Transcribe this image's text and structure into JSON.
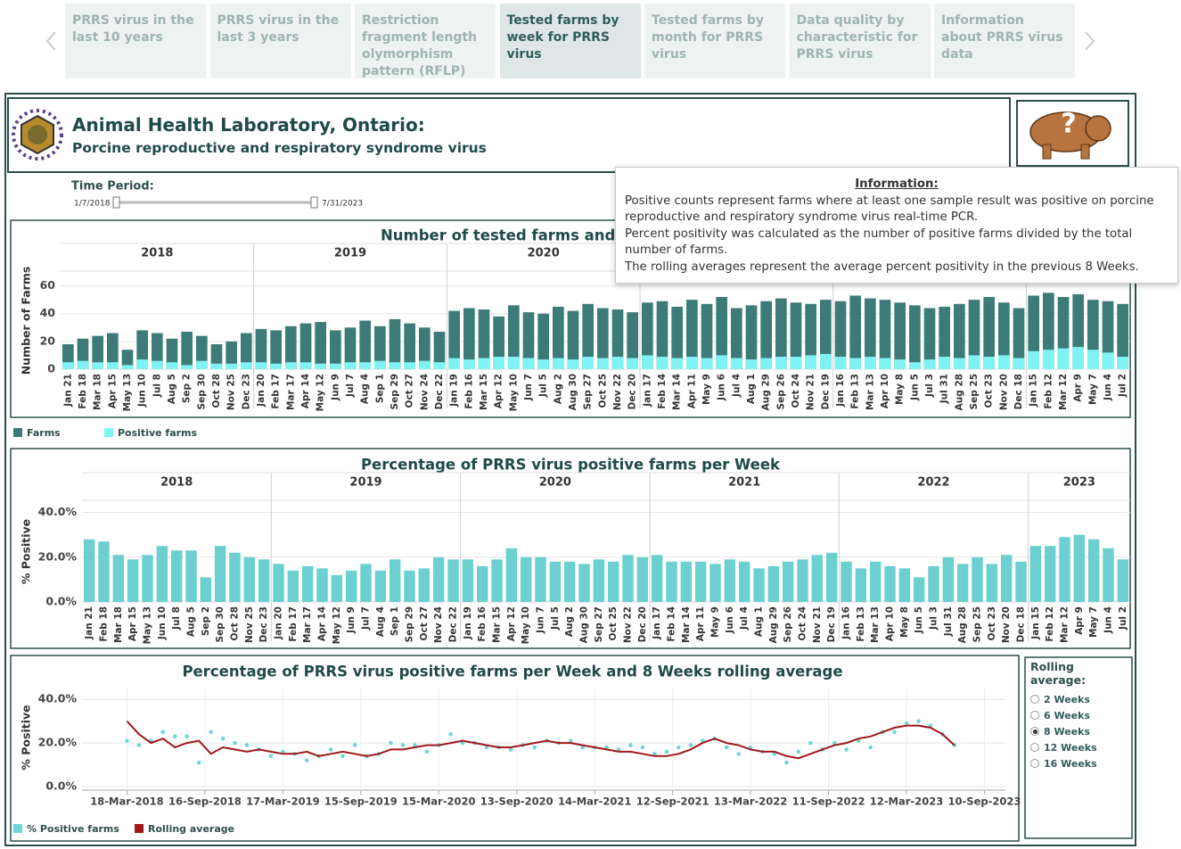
{
  "nav": {
    "tabs": [
      "PRRS virus in the last 10 years",
      "PRRS virus in the last 3 years",
      "Restriction fragment length olymorphism pattern (RFLP)",
      "Tested farms by week for PRRS virus",
      "Tested farms by month for PRRS virus",
      "Data quality by characteristic for PRRS virus",
      "Information about PRRS virus data"
    ],
    "active": 3
  },
  "header": {
    "title": "Animal Health Laboratory, Ontario:",
    "subtitle": "Porcine reproductive and respiratory syndrome virus",
    "help_icon": "?"
  },
  "time_period": {
    "label": "Time Period:",
    "start": "1/7/2018",
    "end": "7/31/2023"
  },
  "info": {
    "title": "Information:",
    "lines": [
      "Positive counts represent farms where at least one sample result was positive on porcine reproductive and respiratory syndrome virus real-time PCR.",
      "Percent positivity was calculated as the number of positive farms divided by the total number of farms.",
      "The rolling averages represent the average percent positivity in the previous 8 Weeks."
    ]
  },
  "rolling_control": {
    "title": "Rolling average:",
    "options": [
      "2 Weeks",
      "6 Weeks",
      "8 Weeks",
      "12 Weeks",
      "16 Weeks"
    ],
    "selected": 2
  },
  "chart_data": [
    {
      "type": "bar",
      "title": "Number of tested farms and posi",
      "y_label": "Number of Farms",
      "years": [
        "2018",
        "2019",
        "2020"
      ],
      "categories": [
        "Jan 21",
        "Feb 18",
        "Mar 18",
        "Apr 15",
        "May 13",
        "Jun 10",
        "Jul 8",
        "Aug 5",
        "Sep 2",
        "Sep 30",
        "Oct 28",
        "Nov 25",
        "Dec 23",
        "Jan 20",
        "Feb 17",
        "Mar 17",
        "Apr 14",
        "May 12",
        "Jun 9",
        "Jul 7",
        "Aug 4",
        "Sep 1",
        "Sep 29",
        "Oct 27",
        "Nov 24",
        "Dec 22",
        "Jan 19",
        "Feb 16",
        "Mar 15",
        "Apr 12",
        "May 10",
        "Jun 7",
        "Jul 5",
        "Aug 2",
        "Aug 30",
        "Sep 27",
        "Oct 25",
        "Nov 22",
        "Dec 20",
        "Jan 17",
        "Feb 14",
        "Mar 14",
        "Apr 11",
        "May 9",
        "Jun 6",
        "Jul 4",
        "Aug 1",
        "Aug 29",
        "Sep 26",
        "Oct 24",
        "Nov 21",
        "Dec 19",
        "Jan 16",
        "Feb 13",
        "Mar 13",
        "Apr 10",
        "May 8",
        "Jun 5",
        "Jul 3",
        "Jul 31",
        "Aug 28",
        "Sep 25",
        "Oct 23",
        "Nov 20",
        "Dec 18",
        "Jan 15",
        "Feb 12",
        "Mar 12",
        "Apr 9",
        "May 7",
        "Jun 4",
        "Jul 2"
      ],
      "series": [
        {
          "name": "Farms",
          "color": "#3d7b78",
          "values": [
            18,
            22,
            24,
            26,
            14,
            28,
            26,
            22,
            27,
            24,
            18,
            20,
            26,
            29,
            28,
            31,
            33,
            34,
            28,
            30,
            35,
            31,
            36,
            33,
            30,
            27,
            42,
            44,
            43,
            38,
            46,
            41,
            40,
            45,
            42,
            47,
            44,
            43,
            41,
            48,
            49,
            45,
            50,
            47,
            52,
            44,
            46,
            49,
            51,
            48,
            47,
            50,
            49,
            53,
            51,
            50,
            48,
            46,
            44,
            45,
            47,
            50,
            52,
            48,
            44,
            53,
            55,
            52,
            54,
            50,
            49,
            47
          ]
        },
        {
          "name": "Positive farms",
          "color": "#7ff3f3",
          "values": [
            5,
            6,
            5,
            5,
            3,
            7,
            6,
            5,
            3,
            6,
            4,
            4,
            5,
            5,
            4,
            5,
            5,
            4,
            4,
            5,
            5,
            6,
            5,
            5,
            6,
            5,
            8,
            7,
            8,
            9,
            9,
            8,
            7,
            8,
            7,
            9,
            8,
            9,
            8,
            10,
            9,
            8,
            9,
            8,
            10,
            8,
            7,
            8,
            9,
            9,
            10,
            11,
            9,
            8,
            9,
            8,
            7,
            5,
            7,
            9,
            8,
            10,
            9,
            10,
            8,
            13,
            14,
            15,
            16,
            14,
            12,
            9
          ]
        }
      ],
      "ylim": [
        0,
        70
      ],
      "yticks": [
        0,
        20,
        40,
        60
      ],
      "grid": true
    },
    {
      "type": "bar",
      "title": "Percentage of PRRS virus positive farms per Week",
      "y_label": "% Positive",
      "years": [
        "2018",
        "2019",
        "2020",
        "2021",
        "2022",
        "2023"
      ],
      "categories": [
        "Jan 21",
        "Feb 18",
        "Mar 18",
        "Apr 15",
        "May 13",
        "Jun 10",
        "Jul 8",
        "Aug 5",
        "Sep 2",
        "Sep 30",
        "Oct 28",
        "Nov 25",
        "Dec 23",
        "Jan 20",
        "Feb 17",
        "Mar 17",
        "Apr 14",
        "May 12",
        "Jun 9",
        "Jul 7",
        "Aug 4",
        "Sep 1",
        "Sep 29",
        "Oct 27",
        "Nov 24",
        "Dec 22",
        "Jan 19",
        "Feb 16",
        "Mar 15",
        "Apr 12",
        "May 10",
        "Jun 7",
        "Jul 5",
        "Aug 2",
        "Aug 30",
        "Sep 27",
        "Oct 25",
        "Nov 22",
        "Dec 20",
        "Jan 17",
        "Feb 14",
        "Mar 14",
        "Apr 11",
        "May 9",
        "Jun 6",
        "Jul 4",
        "Aug 1",
        "Aug 29",
        "Sep 26",
        "Oct 24",
        "Nov 21",
        "Dec 19",
        "Jan 16",
        "Feb 13",
        "Mar 13",
        "Apr 10",
        "May 8",
        "Jun 5",
        "Jul 3",
        "Jul 31",
        "Aug 28",
        "Sep 25",
        "Oct 23",
        "Nov 20",
        "Dec 18",
        "Jan 15",
        "Feb 12",
        "Mar 12",
        "Apr 9",
        "May 7",
        "Jun 4",
        "Jul 2"
      ],
      "series": [
        {
          "name": "% Positive",
          "color": "#6ccfd0",
          "values": [
            28,
            27,
            21,
            19,
            21,
            25,
            23,
            23,
            11,
            25,
            22,
            20,
            19,
            17,
            14,
            16,
            15,
            12,
            14,
            17,
            14,
            19,
            14,
            15,
            20,
            19,
            19,
            16,
            19,
            24,
            20,
            20,
            18,
            18,
            17,
            19,
            18,
            21,
            20,
            21,
            18,
            18,
            18,
            17,
            19,
            18,
            15,
            16,
            18,
            19,
            21,
            22,
            18,
            15,
            18,
            16,
            15,
            11,
            16,
            20,
            17,
            20,
            17,
            21,
            18,
            25,
            25,
            29,
            30,
            28,
            24,
            19
          ]
        }
      ],
      "ylim": [
        0,
        45
      ],
      "yticks": [
        {
          "value": 0,
          "label": "0.0%"
        },
        {
          "value": 20,
          "label": "20.0%"
        },
        {
          "value": 40,
          "label": "40.0%"
        }
      ],
      "grid": true
    },
    {
      "type": "scatter",
      "title": "Percentage of PRRS virus positive farms per Week and 8 Weeks rolling average",
      "y_label": "% Positive",
      "x": [
        "2018-03-18",
        "2018-04-15",
        "2018-05-13",
        "2018-06-10",
        "2018-07-08",
        "2018-08-05",
        "2018-09-02",
        "2018-09-30",
        "2018-10-28",
        "2018-11-25",
        "2018-12-23",
        "2019-01-20",
        "2019-02-17",
        "2019-03-17",
        "2019-04-14",
        "2019-05-12",
        "2019-06-09",
        "2019-07-07",
        "2019-08-04",
        "2019-09-01",
        "2019-09-29",
        "2019-10-27",
        "2019-11-24",
        "2019-12-22",
        "2020-01-19",
        "2020-02-16",
        "2020-03-15",
        "2020-04-12",
        "2020-05-10",
        "2020-06-07",
        "2020-07-05",
        "2020-08-02",
        "2020-08-30",
        "2020-09-27",
        "2020-10-25",
        "2020-11-22",
        "2020-12-20",
        "2021-01-17",
        "2021-02-14",
        "2021-03-14",
        "2021-04-11",
        "2021-05-09",
        "2021-06-06",
        "2021-07-04",
        "2021-08-01",
        "2021-08-29",
        "2021-09-26",
        "2021-10-24",
        "2021-11-21",
        "2021-12-19",
        "2022-01-16",
        "2022-02-13",
        "2022-03-13",
        "2022-04-10",
        "2022-05-08",
        "2022-06-05",
        "2022-07-03",
        "2022-07-31",
        "2022-08-28",
        "2022-09-25",
        "2022-10-23",
        "2022-11-20",
        "2022-12-18",
        "2023-01-15",
        "2023-02-12",
        "2023-03-12",
        "2023-04-09",
        "2023-05-07",
        "2023-06-04",
        "2023-07-02"
      ],
      "series": [
        {
          "name": "% Positive farms",
          "type": "scatter",
          "color": "#6fd6d8",
          "values": [
            21,
            19,
            21,
            25,
            23,
            23,
            11,
            25,
            22,
            20,
            19,
            17,
            14,
            16,
            15,
            12,
            14,
            17,
            14,
            19,
            14,
            15,
            20,
            19,
            19,
            16,
            19,
            24,
            20,
            20,
            18,
            18,
            17,
            19,
            18,
            21,
            20,
            21,
            18,
            18,
            18,
            17,
            19,
            18,
            15,
            16,
            18,
            19,
            21,
            22,
            18,
            15,
            18,
            16,
            15,
            11,
            16,
            20,
            17,
            20,
            17,
            21,
            18,
            25,
            25,
            29,
            30,
            28,
            24,
            19
          ]
        },
        {
          "name": "Rolling average",
          "type": "line",
          "color": "#a01818",
          "values": [
            30,
            24,
            20,
            22,
            18,
            20,
            21,
            15,
            18,
            17,
            16,
            17,
            16,
            15,
            15,
            16,
            14,
            15,
            16,
            15,
            14,
            15,
            17,
            17,
            18,
            19,
            19,
            20,
            21,
            20,
            19,
            18,
            18,
            19,
            20,
            21,
            20,
            20,
            19,
            18,
            17,
            16,
            16,
            15,
            14,
            14,
            15,
            17,
            20,
            22,
            20,
            19,
            17,
            16,
            16,
            14,
            13,
            15,
            17,
            19,
            20,
            22,
            23,
            25,
            27,
            28,
            28,
            27,
            24,
            19
          ]
        }
      ],
      "xlim": [
        "2017-12-03",
        "2023-10-29"
      ],
      "xticks": [
        {
          "value": "2018-03-18",
          "label": "18-Mar-2018"
        },
        {
          "value": "2018-09-16",
          "label": "16-Sep-2018"
        },
        {
          "value": "2019-03-17",
          "label": "17-Mar-2019"
        },
        {
          "value": "2019-09-15",
          "label": "15-Sep-2019"
        },
        {
          "value": "2020-03-15",
          "label": "15-Mar-2020"
        },
        {
          "value": "2020-09-13",
          "label": "13-Sep-2020"
        },
        {
          "value": "2021-03-14",
          "label": "14-Mar-2021"
        },
        {
          "value": "2021-09-12",
          "label": "12-Sep-2021"
        },
        {
          "value": "2022-03-13",
          "label": "13-Mar-2022"
        },
        {
          "value": "2022-09-11",
          "label": "11-Sep-2022"
        },
        {
          "value": "2023-03-12",
          "label": "12-Mar-2023"
        },
        {
          "value": "2023-09-10",
          "label": "10-Sep-2023"
        }
      ],
      "ylim": [
        0,
        45
      ],
      "yticks": [
        {
          "value": 0,
          "label": "0.0%"
        },
        {
          "value": 20,
          "label": "20.0%"
        },
        {
          "value": 40,
          "label": "40.0%"
        }
      ],
      "grid": true
    }
  ]
}
